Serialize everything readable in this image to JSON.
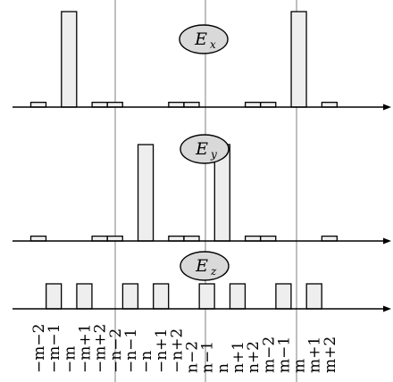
{
  "chart_data": {
    "type": "bar",
    "categories": [
      "−m−2",
      "−m−1",
      "−m",
      "−m+1",
      "−m+2",
      "−n−2",
      "−n−1",
      "−n",
      "−n+1",
      "−n+2",
      "n−2",
      "n−1",
      "n",
      "n+1",
      "n+2",
      "m−2",
      "m−1",
      "m",
      "m+1",
      "m+2"
    ],
    "x_tick_labels": [
      "−m−2",
      "−m−1",
      "−m",
      "−m+1",
      "−m+2",
      "−n−2",
      "−n−1",
      "−n",
      "−n+1",
      "−n+2",
      "n−2",
      "n−1",
      "n",
      "n+1",
      "n+2",
      "m−2",
      "m−1",
      "m",
      "m+1",
      "m+2"
    ],
    "grid": false,
    "panels": [
      {
        "label": "E",
        "subscript": "x",
        "values": [
          0.05,
          0,
          1.0,
          0,
          0.05,
          0.05,
          0,
          0,
          0,
          0.05,
          0.05,
          0,
          0,
          0,
          0.05,
          0.05,
          0,
          1.0,
          0,
          0.05
        ]
      },
      {
        "label": "E",
        "subscript": "y",
        "values": [
          0.05,
          0,
          0,
          0,
          0.05,
          0.05,
          0,
          1.0,
          0,
          0.05,
          0.05,
          0,
          1.0,
          0,
          0.05,
          0.05,
          0,
          0,
          0,
          0.05
        ]
      },
      {
        "label": "E",
        "subscript": "z",
        "values": [
          0,
          1.0,
          0,
          1.0,
          0,
          0,
          1.0,
          0,
          1.0,
          0,
          0,
          1.0,
          0,
          1.0,
          0,
          0,
          1.0,
          0,
          1.0,
          0
        ]
      }
    ],
    "colors": {
      "bar_fill": "#eeeeee",
      "bar_stroke": "#000000",
      "divider": "#aaaaaa",
      "axis": "#000000",
      "oval_fill": "#d9d9d9"
    }
  }
}
